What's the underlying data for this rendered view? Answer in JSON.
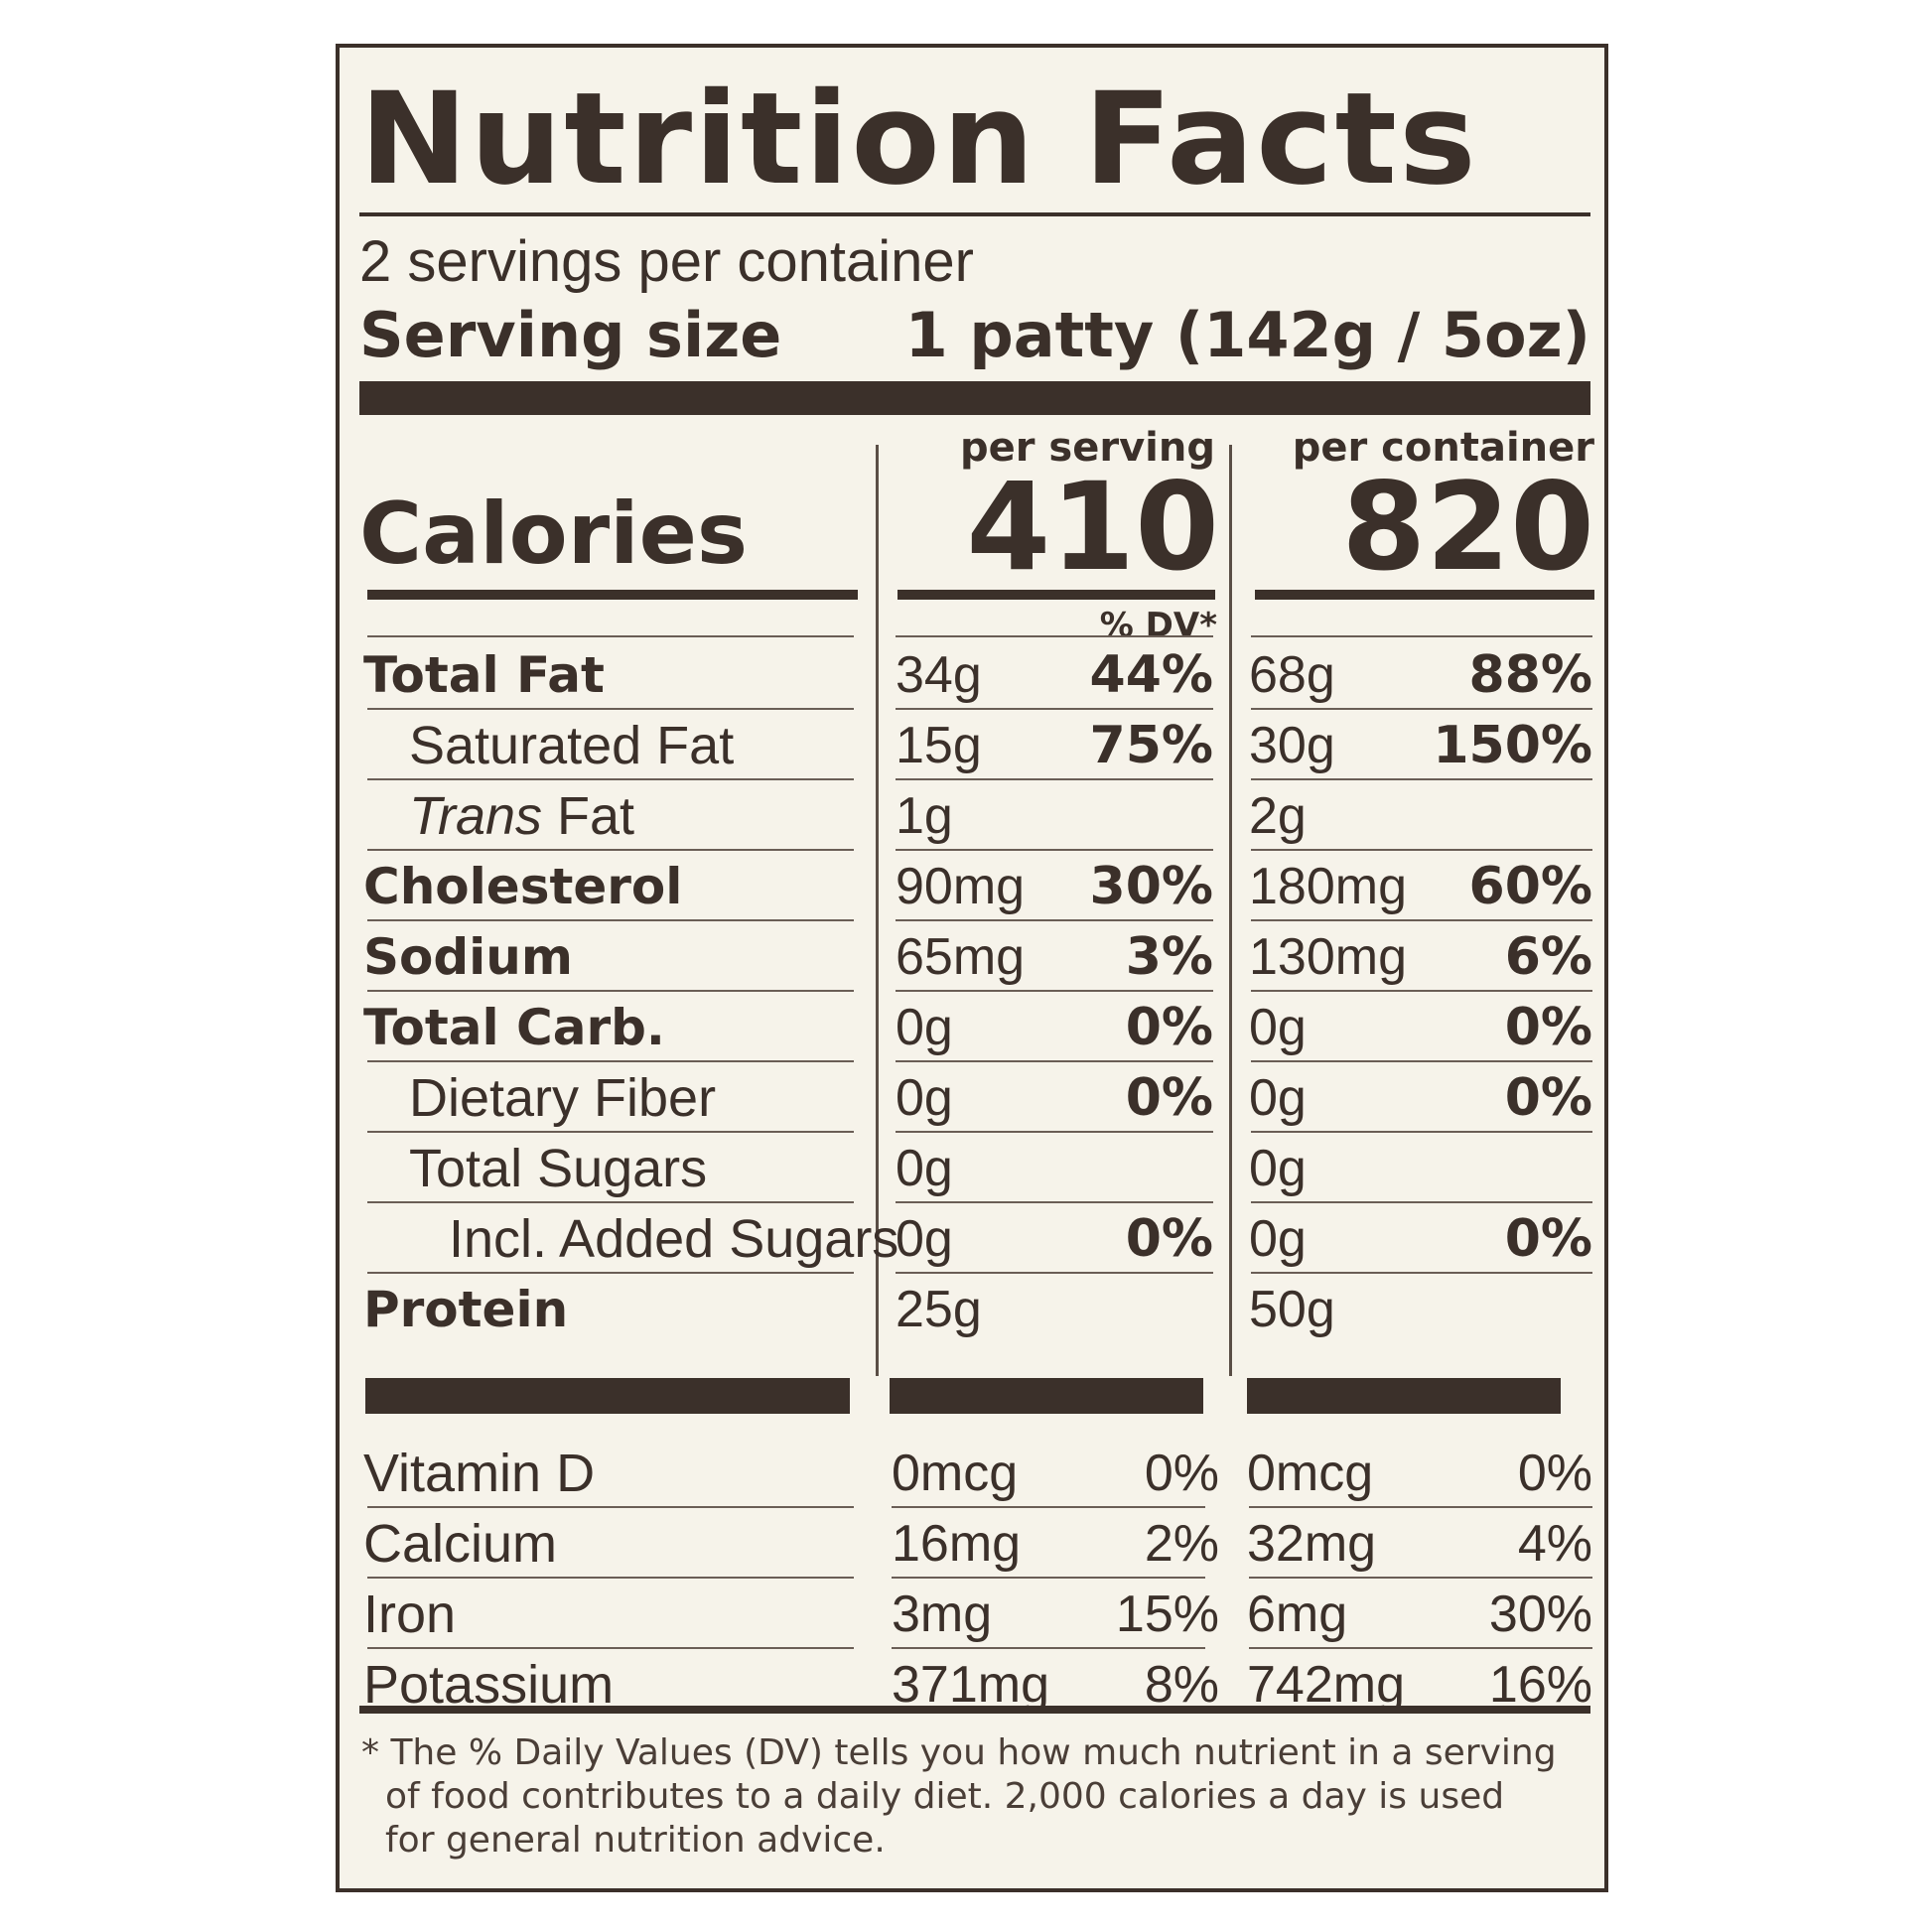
{
  "title": "Nutrition Facts",
  "servings_per_container": "2 servings per container",
  "serving_size_label": "Serving size",
  "serving_size_value": "1 patty (142g / 5oz)",
  "calories_label": "Calories",
  "columns": [
    {
      "heading": "per serving",
      "calories": "410"
    },
    {
      "heading": "per container",
      "calories": "820"
    }
  ],
  "dv_heading": "% DV*",
  "nutrients": [
    {
      "name": "Total Fat",
      "style": "bold",
      "indent": 0,
      "serving_amount": "34g",
      "serving_dv": "44%",
      "container_amount": "68g",
      "container_dv": "88%"
    },
    {
      "name": "Saturated Fat",
      "style": "normal",
      "indent": 1,
      "serving_amount": "15g",
      "serving_dv": "75%",
      "container_amount": "30g",
      "container_dv": "150%"
    },
    {
      "name": "Trans",
      "name_suffix": " Fat",
      "style": "normal",
      "indent": 1,
      "serving_amount": "1g",
      "serving_dv": "",
      "container_amount": "2g",
      "container_dv": ""
    },
    {
      "name": "Cholesterol",
      "style": "bold",
      "indent": 0,
      "serving_amount": "90mg",
      "serving_dv": "30%",
      "container_amount": "180mg",
      "container_dv": "60%"
    },
    {
      "name": "Sodium",
      "style": "bold",
      "indent": 0,
      "serving_amount": "65mg",
      "serving_dv": "3%",
      "container_amount": "130mg",
      "container_dv": "6%"
    },
    {
      "name": "Total Carb.",
      "style": "bold",
      "indent": 0,
      "serving_amount": "0g",
      "serving_dv": "0%",
      "container_amount": "0g",
      "container_dv": "0%"
    },
    {
      "name": "Dietary Fiber",
      "style": "normal",
      "indent": 1,
      "serving_amount": "0g",
      "serving_dv": "0%",
      "container_amount": "0g",
      "container_dv": "0%"
    },
    {
      "name": "Total Sugars",
      "style": "normal",
      "indent": 1,
      "serving_amount": "0g",
      "serving_dv": "",
      "container_amount": "0g",
      "container_dv": ""
    },
    {
      "name": "Incl. Added Sugars",
      "style": "normal",
      "indent": 2,
      "serving_amount": "0g",
      "serving_dv": "0%",
      "container_amount": "0g",
      "container_dv": "0%"
    },
    {
      "name": "Protein",
      "style": "bold",
      "indent": 0,
      "serving_amount": "25g",
      "serving_dv": "",
      "container_amount": "50g",
      "container_dv": ""
    }
  ],
  "vitamins": [
    {
      "name": "Vitamin D",
      "serving_amount": "0mcg",
      "serving_dv": "0%",
      "container_amount": "0mcg",
      "container_dv": "0%"
    },
    {
      "name": "Calcium",
      "serving_amount": "16mg",
      "serving_dv": "2%",
      "container_amount": "32mg",
      "container_dv": "4%"
    },
    {
      "name": "Iron",
      "serving_amount": "3mg",
      "serving_dv": "15%",
      "container_amount": "6mg",
      "container_dv": "30%"
    },
    {
      "name": "Potassium",
      "serving_amount": "371mg",
      "serving_dv": "8%",
      "container_amount": "742mg",
      "container_dv": "16%"
    }
  ],
  "footnote": [
    "* The % Daily Values (DV) tells you how much nutrient in a serving",
    "of food contributes to a daily diet. 2,000 calories a day is used",
    "for general nutrition advice."
  ],
  "colors": {
    "ink": "#3b302a",
    "paper": "#f6f3ea"
  }
}
